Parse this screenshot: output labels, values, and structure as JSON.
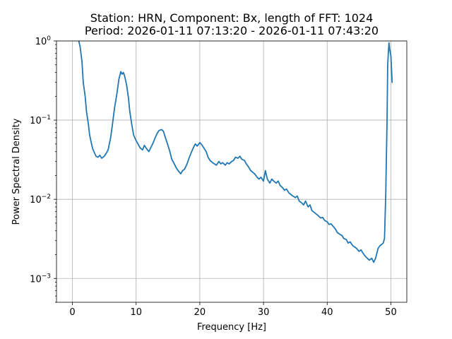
{
  "chart_data": {
    "type": "line",
    "title_lines": [
      "Station: HRN, Component: Bx, length of FFT: 1024",
      "Period: 2026-01-11 07:13:20 - 2026-01-11 07:43:20"
    ],
    "xlabel": "Frequency [Hz]",
    "ylabel": "Power Spectral Density",
    "xlim": [
      -2.5,
      52.5
    ],
    "ylim": [
      0.0005,
      1
    ],
    "yscale": "log",
    "grid": true,
    "x_ticks": [
      0,
      10,
      20,
      30,
      40,
      50
    ],
    "x_tick_labels": [
      "0",
      "10",
      "20",
      "30",
      "40",
      "50"
    ],
    "y_ticks": [
      0.001,
      0.01,
      0.1,
      1
    ],
    "y_tick_labels": [
      {
        "base": "10",
        "exp": "−3"
      },
      {
        "base": "10",
        "exp": "−2"
      },
      {
        "base": "10",
        "exp": "−1"
      },
      {
        "base": "10",
        "exp": "0"
      }
    ],
    "series": [
      {
        "color": "#1f77b4",
        "x": [
          1.0,
          1.2,
          1.5,
          1.7,
          2.0,
          2.2,
          2.5,
          2.7,
          3.0,
          3.2,
          3.5,
          3.7,
          4.0,
          4.3,
          4.6,
          5.0,
          5.3,
          5.6,
          6.0,
          6.3,
          6.6,
          7.0,
          7.3,
          7.6,
          7.8,
          8.0,
          8.2,
          8.5,
          8.8,
          9.0,
          9.3,
          9.6,
          10.0,
          10.3,
          10.6,
          11.0,
          11.3,
          11.6,
          12.0,
          12.3,
          12.6,
          13.0,
          13.3,
          13.6,
          14.0,
          14.3,
          14.6,
          15.0,
          15.3,
          15.6,
          16.0,
          16.3,
          16.6,
          17.0,
          17.3,
          17.6,
          18.0,
          18.3,
          18.6,
          19.0,
          19.3,
          19.6,
          20.0,
          20.3,
          20.6,
          21.0,
          21.3,
          21.6,
          22.0,
          22.3,
          22.6,
          23.0,
          23.3,
          23.6,
          24.0,
          24.3,
          24.6,
          25.0,
          25.3,
          25.6,
          26.0,
          26.3,
          26.6,
          27.0,
          27.3,
          27.6,
          28.0,
          28.3,
          28.6,
          29.0,
          29.3,
          29.6,
          30.0,
          30.3,
          30.6,
          31.0,
          31.3,
          31.6,
          32.0,
          32.3,
          32.6,
          33.0,
          33.3,
          33.6,
          34.0,
          34.3,
          34.6,
          35.0,
          35.3,
          35.6,
          36.0,
          36.3,
          36.6,
          37.0,
          37.3,
          37.6,
          38.0,
          38.3,
          38.6,
          39.0,
          39.3,
          39.6,
          40.0,
          40.3,
          40.6,
          41.0,
          41.3,
          41.6,
          42.0,
          42.3,
          42.6,
          43.0,
          43.3,
          43.6,
          44.0,
          44.3,
          44.6,
          45.0,
          45.3,
          45.6,
          46.0,
          46.3,
          46.6,
          47.0,
          47.3,
          47.6,
          48.0,
          48.3,
          48.6,
          48.8,
          49.0,
          49.2,
          49.4,
          49.5,
          49.6,
          49.7,
          49.8,
          50.0,
          50.2
        ],
        "y": [
          1.0,
          0.85,
          0.55,
          0.3,
          0.2,
          0.13,
          0.09,
          0.065,
          0.05,
          0.043,
          0.038,
          0.035,
          0.034,
          0.036,
          0.033,
          0.035,
          0.038,
          0.042,
          0.06,
          0.09,
          0.14,
          0.22,
          0.33,
          0.41,
          0.38,
          0.4,
          0.36,
          0.28,
          0.19,
          0.13,
          0.09,
          0.065,
          0.055,
          0.05,
          0.045,
          0.042,
          0.048,
          0.044,
          0.04,
          0.045,
          0.05,
          0.06,
          0.068,
          0.074,
          0.076,
          0.072,
          0.06,
          0.048,
          0.04,
          0.032,
          0.028,
          0.025,
          0.023,
          0.021,
          0.023,
          0.024,
          0.028,
          0.033,
          0.038,
          0.045,
          0.05,
          0.047,
          0.052,
          0.049,
          0.045,
          0.04,
          0.034,
          0.031,
          0.029,
          0.028,
          0.027,
          0.03,
          0.028,
          0.029,
          0.027,
          0.029,
          0.028,
          0.03,
          0.031,
          0.034,
          0.033,
          0.035,
          0.032,
          0.031,
          0.028,
          0.026,
          0.023,
          0.022,
          0.021,
          0.019,
          0.018,
          0.019,
          0.017,
          0.023,
          0.018,
          0.016,
          0.018,
          0.017,
          0.016,
          0.017,
          0.015,
          0.014,
          0.013,
          0.0135,
          0.012,
          0.0115,
          0.011,
          0.0105,
          0.011,
          0.0095,
          0.009,
          0.0085,
          0.0095,
          0.008,
          0.0085,
          0.0072,
          0.0068,
          0.0065,
          0.0062,
          0.0058,
          0.0059,
          0.0054,
          0.0052,
          0.0048,
          0.0049,
          0.0045,
          0.0042,
          0.0038,
          0.0036,
          0.0035,
          0.0032,
          0.0031,
          0.0028,
          0.0029,
          0.0026,
          0.0025,
          0.0024,
          0.0022,
          0.0023,
          0.0021,
          0.0019,
          0.0018,
          0.0017,
          0.0018,
          0.0016,
          0.0018,
          0.0024,
          0.0026,
          0.0027,
          0.0028,
          0.0032,
          0.012,
          0.1,
          0.5,
          0.7,
          0.95,
          0.8,
          0.65,
          0.3
        ]
      }
    ]
  }
}
